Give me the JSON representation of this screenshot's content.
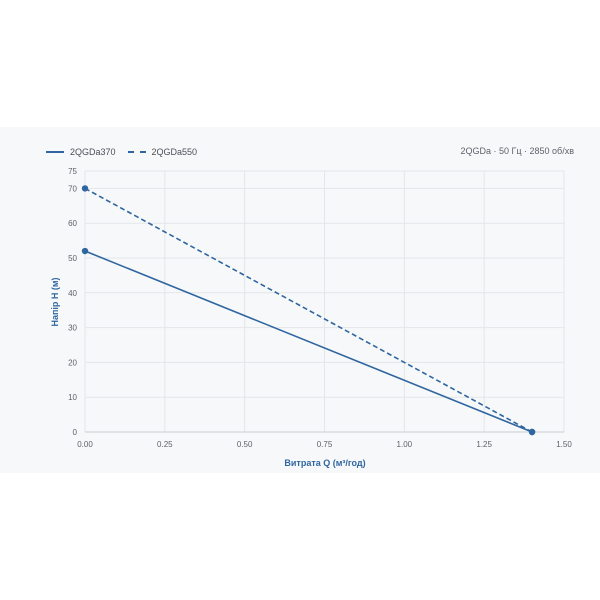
{
  "chart_data": {
    "type": "line",
    "subtitle": "2QGDa · 50 Гц · 2850 об/хв",
    "xlabel": "Витрата Q (м³/год)",
    "ylabel": "Напір H (м)",
    "xlim": [
      0,
      1.5
    ],
    "ylim": [
      0,
      75
    ],
    "x_ticks": [
      "0.00",
      "0.25",
      "0.50",
      "0.75",
      "1.00",
      "1.25",
      "1.50"
    ],
    "y_ticks": [
      "0",
      "10",
      "20",
      "30",
      "40",
      "50",
      "60",
      "70",
      "75"
    ],
    "grid": true,
    "legend_position": "top-left",
    "series": [
      {
        "name": "2QGDa370",
        "style": "solid",
        "color": "#2f66a0",
        "x": [
          0,
          1.4
        ],
        "y": [
          52,
          0
        ]
      },
      {
        "name": "2QGDa550",
        "style": "dashed",
        "color": "#2f66a0",
        "x": [
          0,
          1.4
        ],
        "y": [
          70,
          0
        ]
      }
    ]
  }
}
